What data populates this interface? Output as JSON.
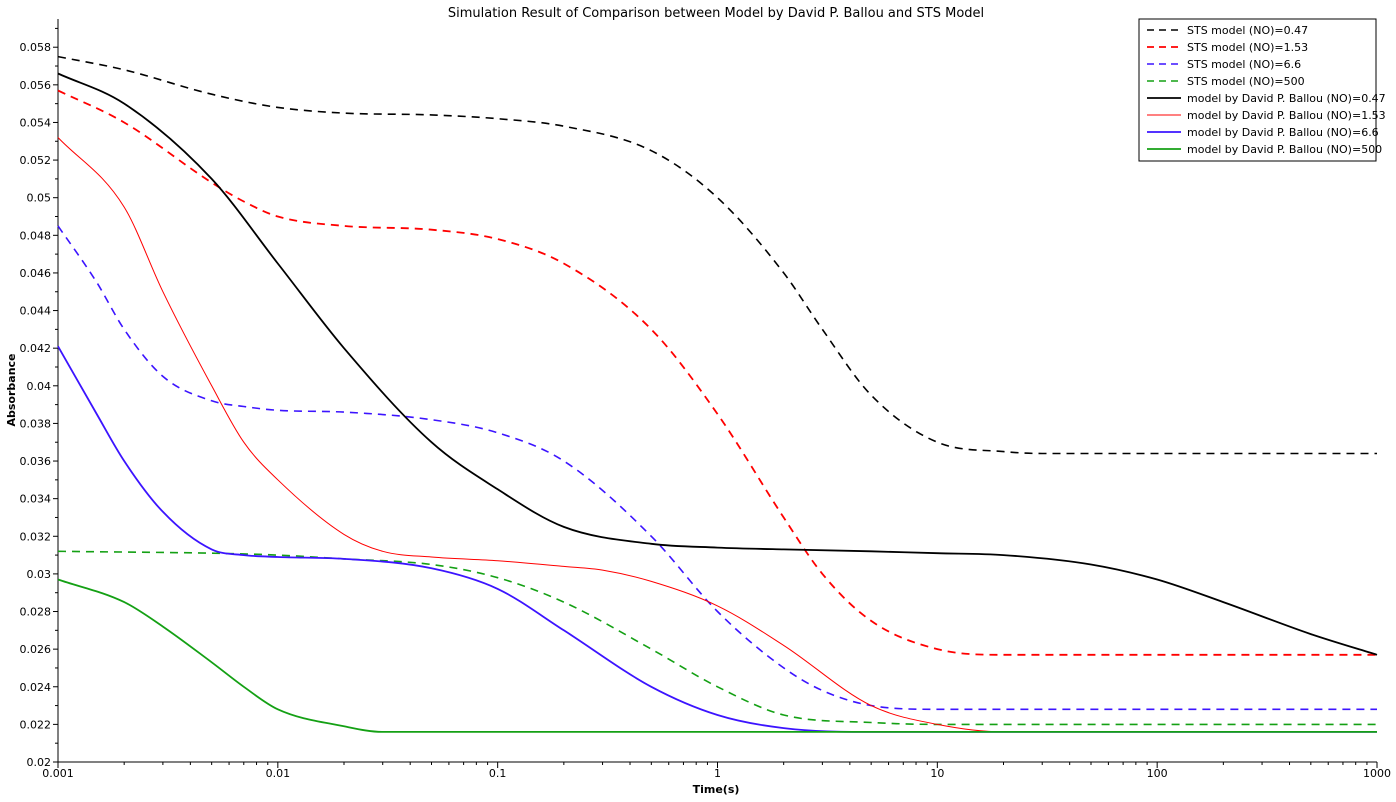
{
  "chart_data": {
    "type": "line",
    "title": "Simulation Result of Comparison between Model by David P. Ballou and STS Model",
    "xlabel": "Time(s)",
    "ylabel": "Absorbance",
    "xscale": "log",
    "xlim": [
      0.001,
      1000
    ],
    "ylim": [
      0.02,
      0.0595
    ],
    "xticks": [
      0.001,
      0.01,
      0.1,
      1,
      10,
      100,
      1000
    ],
    "xtick_labels": [
      "0.001",
      "0.01",
      "0.1",
      "1",
      "10",
      "100",
      "1000"
    ],
    "yticks": [
      0.02,
      0.022,
      0.024,
      0.026,
      0.028,
      0.03,
      0.032,
      0.034,
      0.036,
      0.038,
      0.04,
      0.042,
      0.044,
      0.046,
      0.048,
      0.05,
      0.052,
      0.054,
      0.056,
      0.058
    ],
    "ytick_labels": [
      "0.02",
      "0.022",
      "0.024",
      "0.026",
      "0.028",
      "0.03",
      "0.032",
      "0.034",
      "0.036",
      "0.038",
      "0.04",
      "0.042",
      "0.044",
      "0.046",
      "0.048",
      "0.05",
      "0.052",
      "0.054",
      "0.056",
      "0.058"
    ],
    "grid": false,
    "legend_position": "top-right",
    "series": [
      {
        "name": "STS model (NO)=0.47",
        "color": "#000000",
        "style": "dashed",
        "width": 1.6,
        "x": [
          0.001,
          0.002,
          0.005,
          0.01,
          0.02,
          0.05,
          0.1,
          0.2,
          0.5,
          1,
          2,
          3,
          5,
          10,
          20,
          30,
          100,
          1000
        ],
        "y": [
          0.0575,
          0.0568,
          0.0555,
          0.0548,
          0.0545,
          0.0544,
          0.0542,
          0.0538,
          0.0525,
          0.05,
          0.046,
          0.043,
          0.0395,
          0.037,
          0.0365,
          0.0364,
          0.0364,
          0.0364
        ]
      },
      {
        "name": "STS model (NO)=1.53",
        "color": "#ff0000",
        "style": "dashed",
        "width": 1.8,
        "x": [
          0.001,
          0.002,
          0.005,
          0.007,
          0.01,
          0.02,
          0.05,
          0.1,
          0.2,
          0.5,
          1,
          2,
          3,
          5,
          10,
          20,
          100,
          1000
        ],
        "y": [
          0.0557,
          0.054,
          0.0508,
          0.0498,
          0.049,
          0.0485,
          0.0483,
          0.0478,
          0.0465,
          0.043,
          0.0385,
          0.033,
          0.03,
          0.0275,
          0.026,
          0.0257,
          0.0257,
          0.0257
        ]
      },
      {
        "name": "STS model (NO)=6.6",
        "color": "#3c14ff",
        "style": "dashed",
        "width": 1.6,
        "x": [
          0.001,
          0.0015,
          0.002,
          0.003,
          0.005,
          0.007,
          0.01,
          0.02,
          0.05,
          0.1,
          0.2,
          0.5,
          1,
          2,
          3,
          5,
          10,
          20,
          100,
          1000
        ],
        "y": [
          0.0485,
          0.0455,
          0.043,
          0.0405,
          0.0392,
          0.0389,
          0.0387,
          0.0386,
          0.0382,
          0.0375,
          0.036,
          0.032,
          0.028,
          0.025,
          0.0238,
          0.023,
          0.0228,
          0.0228,
          0.0228,
          0.0228
        ]
      },
      {
        "name": "STS model (NO)=500",
        "color": "#14a014",
        "style": "dashed",
        "width": 1.6,
        "x": [
          0.001,
          0.005,
          0.01,
          0.02,
          0.05,
          0.1,
          0.2,
          0.5,
          1,
          2,
          5,
          10,
          100,
          1000
        ],
        "y": [
          0.0312,
          0.0311,
          0.031,
          0.0308,
          0.0305,
          0.0298,
          0.0285,
          0.026,
          0.024,
          0.0225,
          0.0221,
          0.022,
          0.022,
          0.022
        ]
      },
      {
        "name": "model by David P. Ballou (NO)=0.47",
        "color": "#000000",
        "style": "solid",
        "width": 1.8,
        "x": [
          0.001,
          0.002,
          0.005,
          0.01,
          0.02,
          0.05,
          0.1,
          0.2,
          0.5,
          1,
          2,
          5,
          10,
          20,
          50,
          100,
          200,
          500,
          1000
        ],
        "y": [
          0.0566,
          0.055,
          0.051,
          0.0465,
          0.042,
          0.037,
          0.0345,
          0.0325,
          0.0316,
          0.0314,
          0.0313,
          0.0312,
          0.0311,
          0.031,
          0.0305,
          0.0297,
          0.0285,
          0.0268,
          0.0257
        ]
      },
      {
        "name": "model by David P. Ballou (NO)=1.53",
        "color": "#ff0000",
        "style": "solid",
        "width": 1.0,
        "x": [
          0.001,
          0.002,
          0.003,
          0.005,
          0.007,
          0.01,
          0.02,
          0.03,
          0.05,
          0.1,
          0.2,
          0.3,
          0.5,
          1,
          2,
          5,
          10,
          20,
          100,
          1000
        ],
        "y": [
          0.0532,
          0.0495,
          0.045,
          0.04,
          0.037,
          0.035,
          0.0321,
          0.0312,
          0.0309,
          0.0307,
          0.0304,
          0.0302,
          0.0296,
          0.0283,
          0.0262,
          0.023,
          0.022,
          0.0216,
          0.0216,
          0.0216
        ]
      },
      {
        "name": "model by David P. Ballou (NO)=6.6",
        "color": "#3c14ff",
        "style": "solid",
        "width": 1.8,
        "x": [
          0.001,
          0.0015,
          0.002,
          0.003,
          0.005,
          0.007,
          0.01,
          0.02,
          0.05,
          0.1,
          0.2,
          0.5,
          1,
          2,
          5,
          10,
          100,
          1000
        ],
        "y": [
          0.0421,
          0.0385,
          0.036,
          0.0333,
          0.0313,
          0.031,
          0.0309,
          0.0308,
          0.0303,
          0.0292,
          0.027,
          0.024,
          0.0225,
          0.0218,
          0.0216,
          0.0216,
          0.0216,
          0.0216
        ]
      },
      {
        "name": "model by David P. Ballou (NO)=500",
        "color": "#14a014",
        "style": "solid",
        "width": 1.8,
        "x": [
          0.001,
          0.002,
          0.003,
          0.005,
          0.007,
          0.01,
          0.02,
          0.03,
          0.05,
          0.1,
          1,
          10,
          100,
          1000
        ],
        "y": [
          0.0297,
          0.0285,
          0.0272,
          0.0253,
          0.024,
          0.0228,
          0.0219,
          0.0216,
          0.0216,
          0.0216,
          0.0216,
          0.0216,
          0.0216,
          0.0216
        ]
      }
    ]
  }
}
